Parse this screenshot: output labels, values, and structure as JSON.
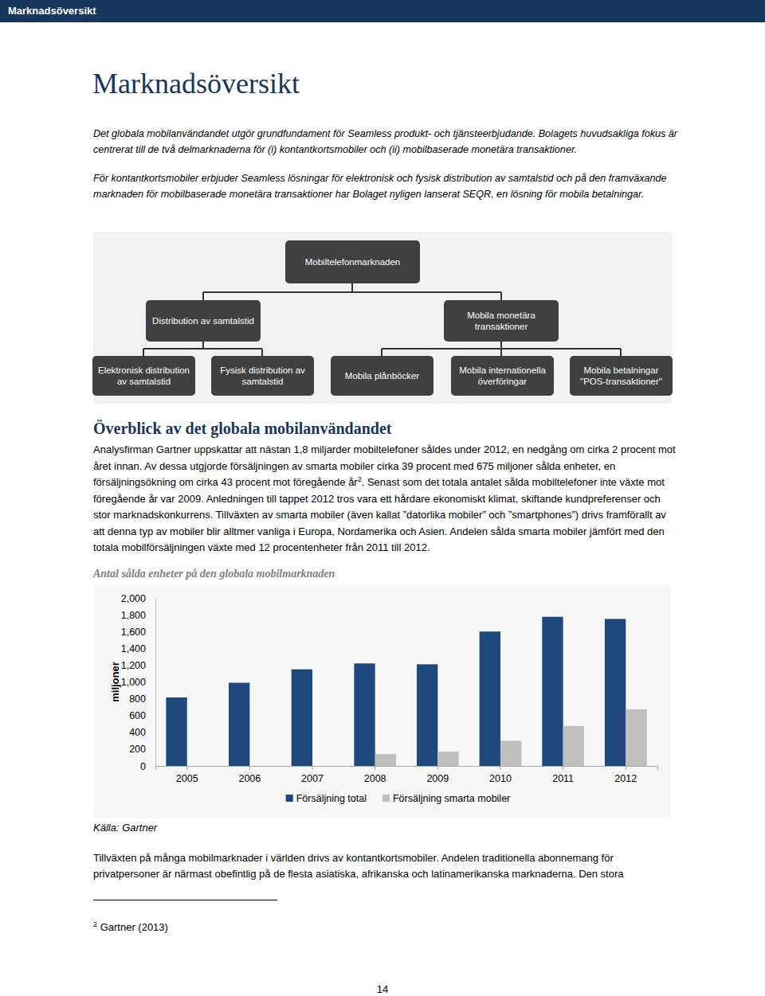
{
  "header": "Marknadsöversikt",
  "title": "Marknadsöversikt",
  "intro": [
    "Det globala mobilanvändandet utgör grundfundament för Seamless produkt- och tjänsteerbjudande. Bolagets huvudsakliga fokus är centrerat till de två delmarknaderna för (i) kontantkortsmobiler och (ii) mobilbaserade monetära transaktioner.",
    "För kontantkortsmobiler erbjuder Seamless lösningar för elektronisk och fysisk distribution av samtalstid och på den framväxande marknaden för mobilbaserade monetära transaktioner har Bolaget nyligen lanserat SEQR, en lösning för mobila betalningar."
  ],
  "diagram": {
    "root": "Mobiltelefonmarknaden",
    "branches": [
      {
        "label": "Distribution av samtalstid",
        "children": [
          "Elektronisk distribution av samtalstid",
          "Fysisk distribution av samtalstid"
        ]
      },
      {
        "label": "Mobila monetära transaktioner",
        "children": [
          "Mobila plånböcker",
          "Mobila internationella överföringar",
          "Mobila betalningar \"POS-transaktioner\""
        ]
      }
    ]
  },
  "section": {
    "heading": "Överblick av det globala mobilanvändandet",
    "runs": [
      {
        "text": "Analysfirman Gartner uppskattar att nästan 1,8 miljarder mobiltelefoner såldes under 2012, en nedgång om cirka 2 procent mot året innan. Av dessa utgjorde försäljningen av smarta mobiler cirka 39 procent med 675 miljoner sålda enheter, en försäljningsökning om cirka 43 procent mot föregående år"
      },
      {
        "sup": "2"
      },
      {
        "text": ". Senast som det totala antalet sålda mobiltelefoner inte växte mot föregående år var 2009. Anledningen till tappet 2012 tros vara ett hårdare ekonomiskt klimat, skiftande kundpreferenser och stor marknadskonkurrens. Tillväxten av smarta mobiler (även kallat ”datorlika mobiler” och ”smartphones”) drivs framförallt av att denna typ av mobiler blir alltmer vanliga i Europa, Nordamerika och Asien. Andelen sålda smarta mobiler jämfört med den totala mobilförsäljningen växte med 12 procentenheter från 2011 till 2012."
      }
    ]
  },
  "chart_data": {
    "type": "bar",
    "title": "Antal sålda enheter på den globala mobilmarknaden",
    "y_label": "miljoner",
    "categories": [
      "2005",
      "2006",
      "2007",
      "2008",
      "2009",
      "2010",
      "2011",
      "2012"
    ],
    "series": [
      {
        "name": "Försäljning total",
        "color": "#1f497d",
        "values": [
          815,
          990,
          1150,
          1220,
          1210,
          1600,
          1775,
          1750
        ]
      },
      {
        "name": "Försäljning smarta mobiler",
        "color": "#bfbfbf",
        "values": [
          null,
          null,
          null,
          140,
          170,
          300,
          475,
          675
        ]
      }
    ],
    "ylim": [
      0,
      2000
    ],
    "yticks": [
      0,
      200,
      400,
      600,
      800,
      {
        "value": 1000,
        "label": "1,000"
      },
      {
        "value": 1200,
        "label": "1,200"
      },
      {
        "value": 1400,
        "label": "1,400"
      },
      {
        "value": 1600,
        "label": "1,600"
      },
      {
        "value": 1800,
        "label": "1,800"
      },
      {
        "value": 2000,
        "label": "2,000"
      }
    ],
    "grid": false,
    "legend": "bottom"
  },
  "source": "Källa: Gartner",
  "closing": "Tillväxten på många mobilmarknader i världen drivs av kontantkortsmobiler. Andelen traditionella abonnemang för privatpersoner är närmast obefintlig på de flesta asiatiska, afrikanska och latinamerikanska marknaderna. Den stora",
  "footnote": {
    "marker": "2",
    "text": "Gartner (2013)"
  },
  "page_number": "14"
}
